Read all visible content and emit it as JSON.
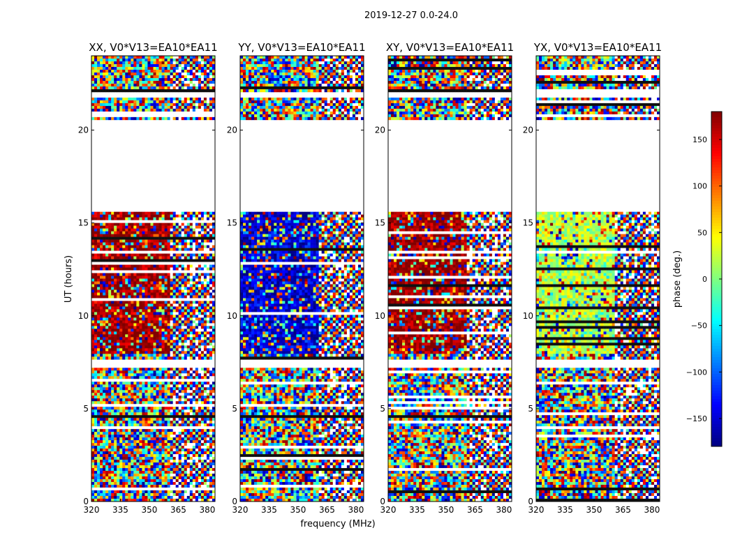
{
  "figure": {
    "suptitle": "2019-12-27 0.0-24.0"
  },
  "chart_data": {
    "type": "heatmap",
    "suptitle": "2019-12-27 0.0-24.0",
    "xlabel": "frequency (MHz)",
    "ylabel": "UT (hours)",
    "xlim": [
      320,
      384
    ],
    "ylim": [
      0,
      24
    ],
    "xticks": [
      320,
      335,
      350,
      365,
      380
    ],
    "yticks": [
      0,
      5,
      10,
      15,
      20
    ],
    "panels": [
      {
        "title": "XX, V0*V13=EA10*EA11",
        "polarization": "XX",
        "mean_phase": 170
      },
      {
        "title": "YY, V0*V13=EA10*EA11",
        "polarization": "YY",
        "mean_phase": -150
      },
      {
        "title": "XY, V0*V13=EA10*EA11",
        "polarization": "XY",
        "mean_phase": 175
      },
      {
        "title": "YX, V0*V13=EA10*EA11",
        "polarization": "YX",
        "mean_phase": 20
      }
    ],
    "data_gaps_hours": [
      [
        15.6,
        20.5
      ],
      [
        21.8,
        22.0
      ],
      [
        7.2,
        7.6
      ]
    ],
    "colorbar": {
      "label": "phase (deg.)",
      "range": [
        -180,
        180
      ],
      "ticks": [
        150,
        100,
        50,
        0,
        -50,
        -100,
        -150
      ],
      "tick_labels": [
        "150",
        "100",
        "50",
        "0",
        "−50",
        "−100",
        "−150"
      ],
      "colormap": "jet"
    }
  }
}
